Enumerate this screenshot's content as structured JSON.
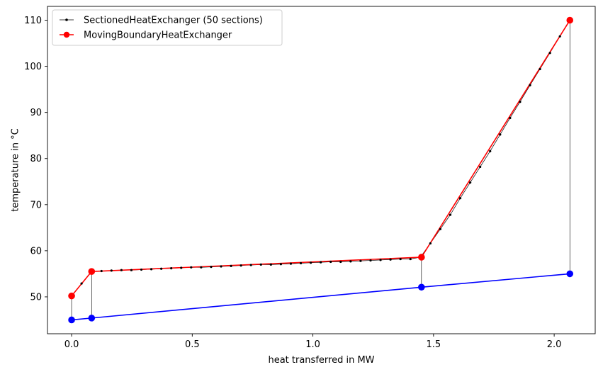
{
  "chart_data": {
    "type": "line",
    "title": "",
    "xlabel": "heat transferred in MW",
    "ylabel": "temperature in °C",
    "xlim": [
      -0.1,
      2.17
    ],
    "ylim": [
      42,
      113
    ],
    "xticks": [
      0.0,
      0.5,
      1.0,
      1.5,
      2.0
    ],
    "xtick_labels": [
      "0.0",
      "0.5",
      "1.0",
      "1.5",
      "2.0"
    ],
    "yticks": [
      50,
      60,
      70,
      80,
      90,
      100,
      110
    ],
    "ytick_labels": [
      "50",
      "60",
      "70",
      "80",
      "90",
      "100",
      "110"
    ],
    "grid": false,
    "legend_position": "top-left",
    "legend": [
      {
        "label": "SectionedHeatExchanger (50 sections)",
        "color": "#000000",
        "marker": "dot-small"
      },
      {
        "label": "MovingBoundaryHeatExchanger",
        "color": "#ff0000",
        "marker": "dot-large"
      }
    ],
    "series": [
      {
        "name": "MovingBoundaryHeatExchanger",
        "color": "#ff0000",
        "x": [
          0.0,
          0.083,
          1.45,
          2.065
        ],
        "y": [
          50.2,
          55.5,
          58.6,
          110.0
        ]
      },
      {
        "color": "#0000ff",
        "x": [
          0.0,
          0.083,
          1.45,
          2.065
        ],
        "y": [
          45.0,
          45.4,
          52.1,
          55.0
        ]
      },
      {
        "name": "SectionedHeatExchanger (50 sections)",
        "color": "#000000",
        "x": [
          0.0,
          0.0413,
          0.0826,
          0.1239,
          0.1652,
          0.2065,
          0.2478,
          0.2891,
          0.3304,
          0.3717,
          0.413,
          0.4543,
          0.4956,
          0.5369,
          0.5782,
          0.6195,
          0.6608,
          0.7021,
          0.7434,
          0.7847,
          0.826,
          0.8673,
          0.9086,
          0.9499,
          0.9912,
          1.0325,
          1.0738,
          1.1151,
          1.1564,
          1.1977,
          1.239,
          1.2803,
          1.3216,
          1.3629,
          1.4042,
          1.4455,
          1.4868,
          1.5281,
          1.5694,
          1.6107,
          1.652,
          1.6933,
          1.7346,
          1.7759,
          1.8172,
          1.8585,
          1.8998,
          1.9411,
          1.9824,
          2.0237,
          2.065
        ],
        "y": [
          50.2,
          52.9,
          55.5,
          55.6,
          55.7,
          55.8,
          55.8,
          55.9,
          56.0,
          56.1,
          56.2,
          56.3,
          56.4,
          56.4,
          56.5,
          56.6,
          56.7,
          56.8,
          56.9,
          57.0,
          57.0,
          57.1,
          57.2,
          57.3,
          57.4,
          57.5,
          57.6,
          57.6,
          57.7,
          57.8,
          57.9,
          58.0,
          58.1,
          58.2,
          58.2,
          58.6,
          61.6,
          64.7,
          67.8,
          71.4,
          74.8,
          78.2,
          81.6,
          85.2,
          88.8,
          92.3,
          95.9,
          99.4,
          102.9,
          106.5,
          110.0
        ]
      }
    ],
    "connectors": [
      {
        "x": 0.0,
        "y_low": 45.0,
        "y_high": 50.2
      },
      {
        "x": 0.083,
        "y_low": 45.4,
        "y_high": 55.5
      },
      {
        "x": 1.45,
        "y_low": 52.1,
        "y_high": 58.6
      },
      {
        "x": 2.065,
        "y_low": 55.0,
        "y_high": 110.0
      }
    ]
  }
}
